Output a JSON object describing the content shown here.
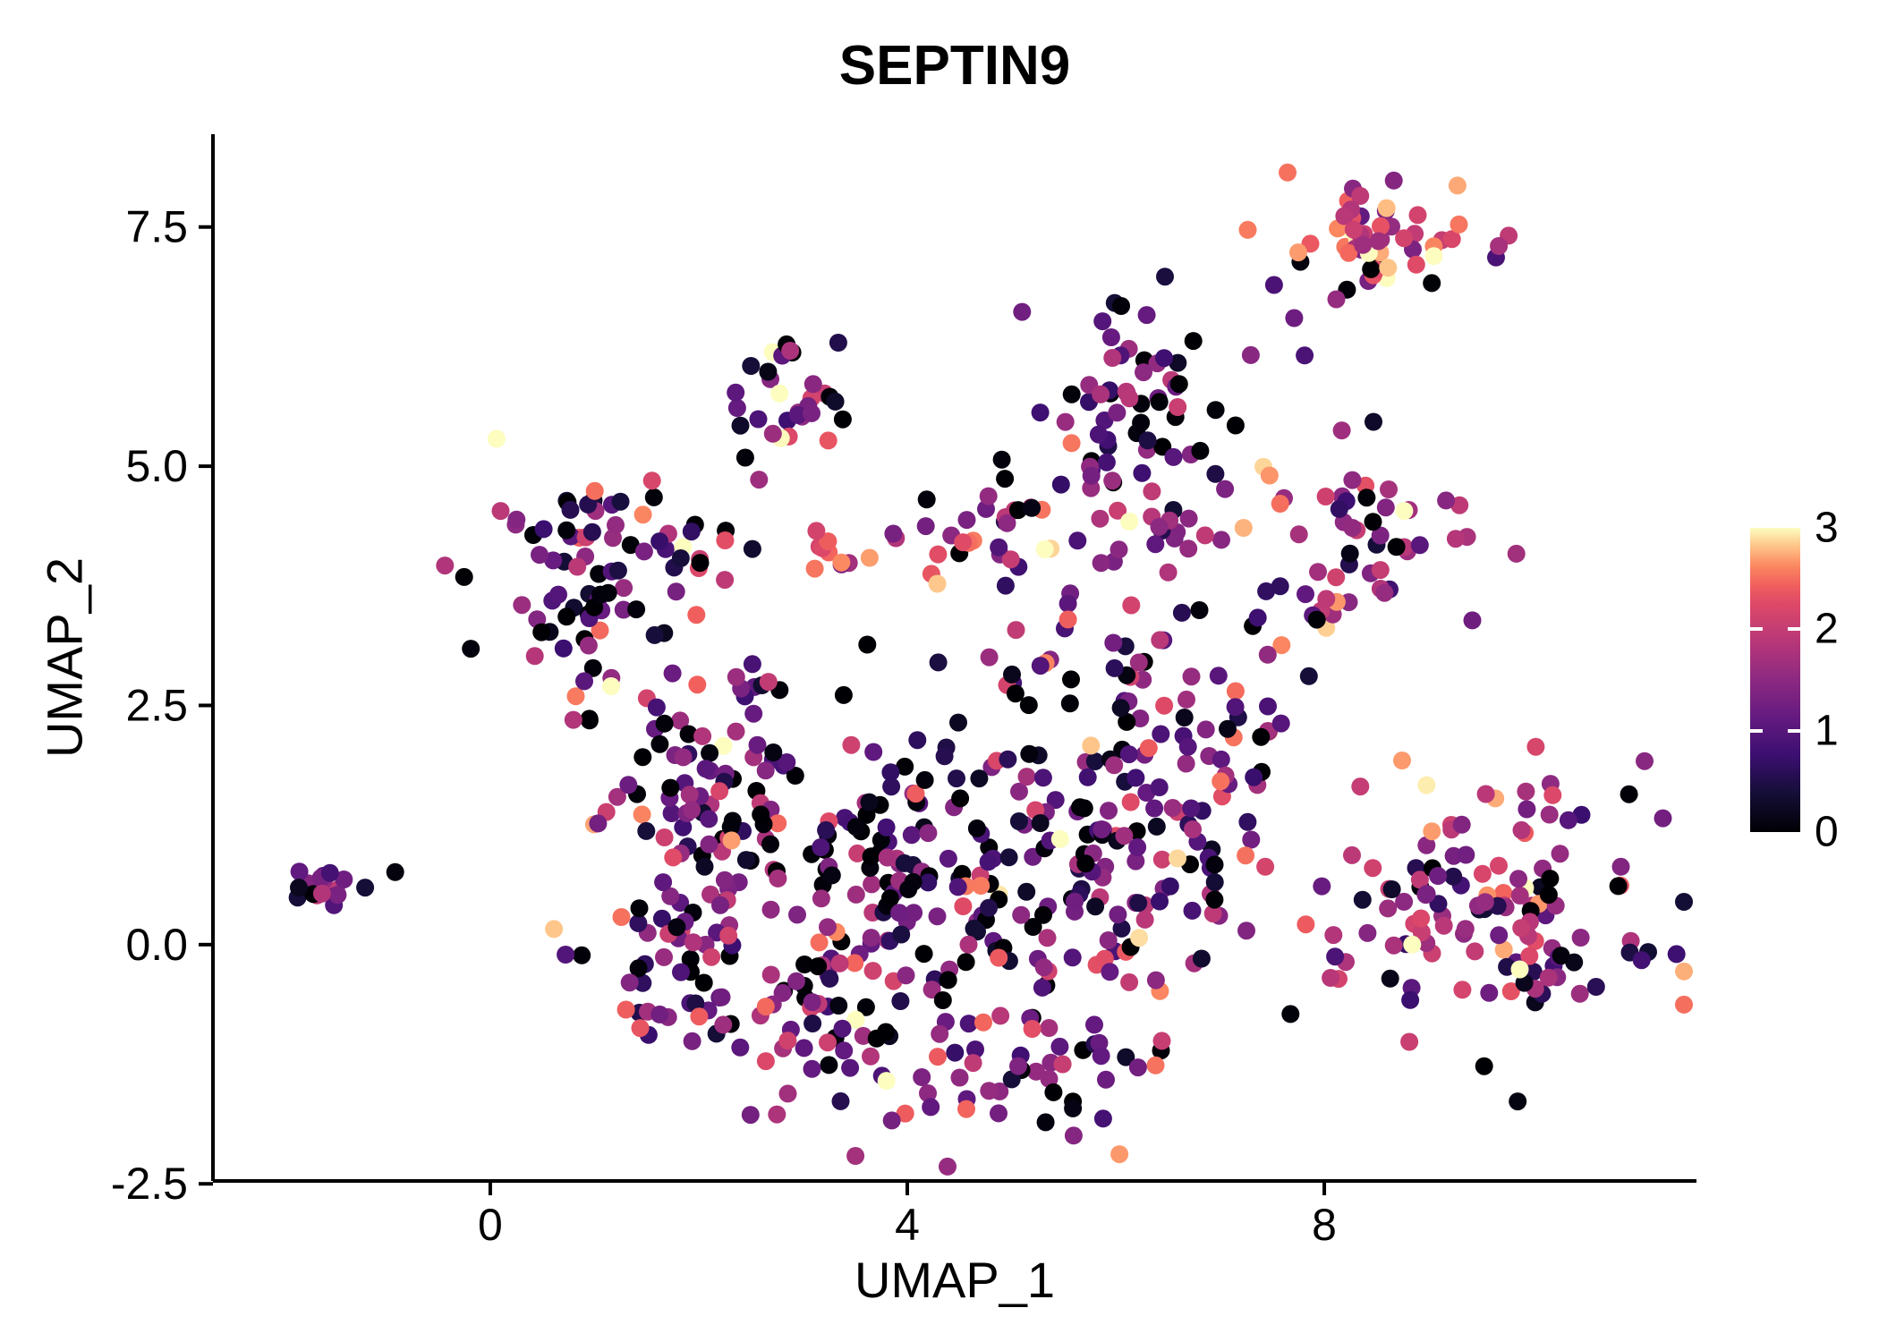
{
  "chart_data": {
    "type": "scatter",
    "title": "SEPTIN9",
    "xlabel": "UMAP_1",
    "ylabel": "UMAP_2",
    "xlim": [
      -2.66,
      11.57
    ],
    "ylim": [
      -2.47,
      8.47
    ],
    "grid": false,
    "xticks": {
      "values": [
        0,
        4,
        8
      ],
      "labels": [
        "0",
        "4",
        "8"
      ]
    },
    "yticks": {
      "values": [
        -2.5,
        0.0,
        2.5,
        5.0,
        7.5
      ],
      "labels": [
        "-2.5",
        "0.0",
        "2.5",
        "5.0",
        "7.5"
      ]
    },
    "point_radius_px": 10,
    "legend": {
      "position": "right",
      "domain": [
        0,
        3
      ],
      "ticks": [
        3,
        2,
        1,
        0
      ],
      "interior_ticks": [
        1,
        2
      ]
    },
    "color_scale": {
      "name": "magma",
      "domain": [
        0,
        3
      ],
      "stops": [
        [
          0.0,
          "#000004"
        ],
        [
          0.125,
          "#140e36"
        ],
        [
          0.25,
          "#3b0f70"
        ],
        [
          0.375,
          "#641a80"
        ],
        [
          0.5,
          "#8c2981"
        ],
        [
          0.625,
          "#b73779"
        ],
        [
          0.75,
          "#de4968"
        ],
        [
          0.8125,
          "#f1605d"
        ],
        [
          0.875,
          "#fb8861"
        ],
        [
          0.9375,
          "#fec287"
        ],
        [
          1.0,
          "#fcfdbf"
        ]
      ]
    },
    "clusters": [
      {
        "name": "isolated-left",
        "cx": -1.55,
        "cy": 0.65,
        "sx": 0.2,
        "sy": 0.12,
        "n": 18,
        "expr_mean": 1.4,
        "expr_sd": 0.7,
        "p_zero": 0.1
      },
      {
        "name": "isolated-left-outlier",
        "cx": -0.85,
        "cy": 0.8,
        "sx": 0.04,
        "sy": 0.03,
        "n": 1,
        "expr_mean": 0.1,
        "expr_sd": 0.05,
        "p_zero": 0.9
      },
      {
        "name": "top-right",
        "cx": 8.6,
        "cy": 7.45,
        "sx": 0.5,
        "sy": 0.27,
        "n": 55,
        "expr_mean": 2.1,
        "expr_sd": 0.6,
        "p_zero": 0.04
      },
      {
        "name": "top-right-stragglers",
        "cx": 7.75,
        "cy": 6.6,
        "sx": 0.3,
        "sy": 0.3,
        "n": 4,
        "expr_mean": 1.2,
        "expr_sd": 0.6,
        "p_zero": 0.1
      },
      {
        "name": "right-upper",
        "cx": 8.45,
        "cy": 4.3,
        "sx": 0.45,
        "sy": 0.4,
        "n": 42,
        "expr_mean": 1.5,
        "expr_sd": 0.8,
        "p_zero": 0.08
      },
      {
        "name": "right-upper-tail",
        "cx": 7.95,
        "cy": 3.55,
        "sx": 0.25,
        "sy": 0.2,
        "n": 8,
        "expr_mean": 1.6,
        "expr_sd": 0.7,
        "p_zero": 0.05
      },
      {
        "name": "right-lower",
        "cx": 9.7,
        "cy": 0.5,
        "sx": 0.85,
        "sy": 0.8,
        "n": 130,
        "expr_mean": 1.5,
        "expr_sd": 0.8,
        "p_zero": 0.07
      },
      {
        "name": "top-middle",
        "cx": 2.95,
        "cy": 5.75,
        "sx": 0.32,
        "sy": 0.28,
        "n": 28,
        "expr_mean": 1.5,
        "expr_sd": 0.9,
        "p_zero": 0.08
      },
      {
        "name": "top-middle-tail",
        "cx": 2.55,
        "cy": 5.15,
        "sx": 0.15,
        "sy": 0.15,
        "n": 4,
        "expr_mean": 1.2,
        "expr_sd": 0.9,
        "p_zero": 0.25
      },
      {
        "name": "upper-center",
        "cx": 6.2,
        "cy": 5.55,
        "sx": 0.42,
        "sy": 0.45,
        "n": 58,
        "expr_mean": 1.0,
        "expr_sd": 0.6,
        "p_zero": 0.1
      },
      {
        "name": "upper-center-lower",
        "cx": 6.5,
        "cy": 4.5,
        "sx": 0.5,
        "sy": 0.35,
        "n": 30,
        "expr_mean": 1.6,
        "expr_sd": 0.7,
        "p_zero": 0.08
      },
      {
        "name": "left-cluster",
        "cx": 1.15,
        "cy": 3.85,
        "sx": 0.5,
        "sy": 0.55,
        "n": 88,
        "expr_mean": 1.2,
        "expr_sd": 0.85,
        "p_zero": 0.13
      },
      {
        "name": "mid-band-left",
        "cx": 3.3,
        "cy": 4.2,
        "sx": 0.7,
        "sy": 0.22,
        "n": 20,
        "expr_mean": 1.8,
        "expr_sd": 0.7,
        "p_zero": 0.05
      },
      {
        "name": "mid-band-right",
        "cx": 4.85,
        "cy": 4.25,
        "sx": 0.45,
        "sy": 0.2,
        "n": 18,
        "expr_mean": 1.6,
        "expr_sd": 0.7,
        "p_zero": 0.06
      },
      {
        "name": "central-upper-left",
        "cx": 2.0,
        "cy": 1.6,
        "sx": 0.65,
        "sy": 0.65,
        "n": 70,
        "expr_mean": 1.1,
        "expr_sd": 0.8,
        "p_zero": 0.15
      },
      {
        "name": "central-left",
        "cx": 1.6,
        "cy": -0.1,
        "sx": 0.45,
        "sy": 0.55,
        "n": 45,
        "expr_mean": 1.4,
        "expr_sd": 0.8,
        "p_zero": 0.12
      },
      {
        "name": "central-mid-left",
        "cx": 3.2,
        "cy": 0.6,
        "sx": 0.8,
        "sy": 0.8,
        "n": 90,
        "expr_mean": 1.0,
        "expr_sd": 0.8,
        "p_zero": 0.18
      },
      {
        "name": "central-core",
        "cx": 4.7,
        "cy": 0.7,
        "sx": 0.9,
        "sy": 0.85,
        "n": 115,
        "expr_mean": 0.9,
        "expr_sd": 0.8,
        "p_zero": 0.2
      },
      {
        "name": "central-right",
        "cx": 6.1,
        "cy": 0.6,
        "sx": 0.7,
        "sy": 0.85,
        "n": 90,
        "expr_mean": 1.2,
        "expr_sd": 0.8,
        "p_zero": 0.12
      },
      {
        "name": "bottom-arc",
        "cx": 4.9,
        "cy": -1.4,
        "sx": 0.9,
        "sy": 0.38,
        "n": 50,
        "expr_mean": 1.5,
        "expr_sd": 0.75,
        "p_zero": 0.08
      },
      {
        "name": "bottom-left",
        "cx": 3.05,
        "cy": -0.9,
        "sx": 0.5,
        "sy": 0.45,
        "n": 35,
        "expr_mean": 1.4,
        "expr_sd": 0.8,
        "p_zero": 0.1
      },
      {
        "name": "right-bump",
        "cx": 6.9,
        "cy": 1.95,
        "sx": 0.42,
        "sy": 0.5,
        "n": 40,
        "expr_mean": 1.5,
        "expr_sd": 0.75,
        "p_zero": 0.08
      },
      {
        "name": "connector",
        "cx": 5.9,
        "cy": 2.9,
        "sx": 0.6,
        "sy": 0.4,
        "n": 30,
        "expr_mean": 1.2,
        "expr_sd": 0.8,
        "p_zero": 0.12
      },
      {
        "name": "sparse-upper-right",
        "cx": 7.3,
        "cy": 3.3,
        "sx": 0.3,
        "sy": 0.3,
        "n": 8,
        "expr_mean": 1.3,
        "expr_sd": 0.8,
        "p_zero": 0.1
      },
      {
        "name": "scattered-center-top",
        "cx": 4.6,
        "cy": 4.9,
        "sx": 0.5,
        "sy": 0.3,
        "n": 5,
        "expr_mean": 1.2,
        "expr_sd": 0.9,
        "p_zero": 0.15
      }
    ]
  }
}
